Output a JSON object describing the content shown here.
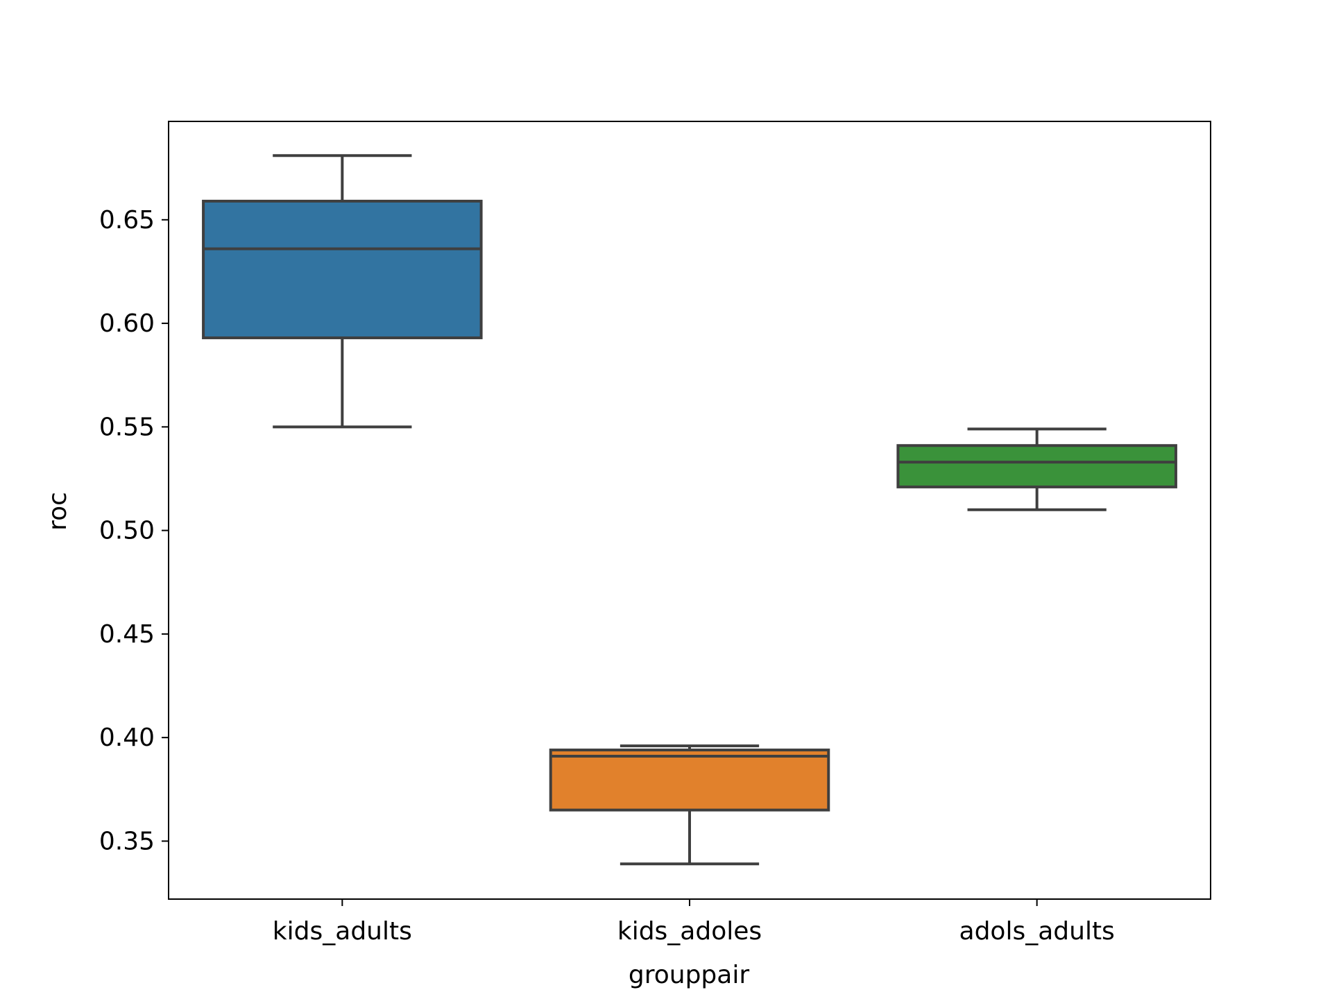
{
  "chart_data": {
    "type": "box",
    "xlabel": "grouppair",
    "ylabel": "roc",
    "ylim": [
      0.322,
      0.6975
    ],
    "yticks": [
      0.35,
      0.4,
      0.45,
      0.5,
      0.55,
      0.6,
      0.65
    ],
    "ytick_labels": [
      "0.35",
      "0.40",
      "0.45",
      "0.50",
      "0.55",
      "0.60",
      "0.65"
    ],
    "categories": [
      "kids_adults",
      "kids_adoles",
      "adols_adults"
    ],
    "boxes": [
      {
        "category": "kids_adults",
        "whisker_low": 0.55,
        "q1": 0.593,
        "median": 0.636,
        "q3": 0.659,
        "whisker_high": 0.681,
        "color": "#3274a1"
      },
      {
        "category": "kids_adoles",
        "whisker_low": 0.339,
        "q1": 0.365,
        "median": 0.391,
        "q3": 0.394,
        "whisker_high": 0.396,
        "color": "#e1812c"
      },
      {
        "category": "adols_adults",
        "whisker_low": 0.51,
        "q1": 0.521,
        "median": 0.533,
        "q3": 0.541,
        "whisker_high": 0.549,
        "color": "#3a923a"
      }
    ],
    "grid": false,
    "colors": {
      "line": "#3f3f3f",
      "axes": "#000000"
    }
  }
}
